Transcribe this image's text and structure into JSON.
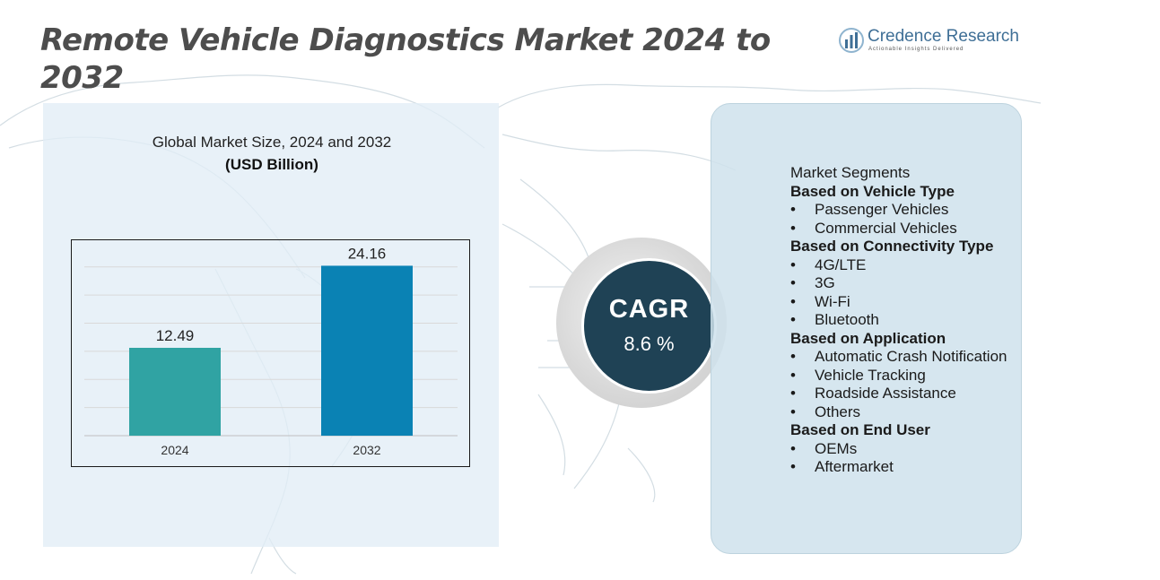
{
  "title": "Remote Vehicle Diagnostics Market 2024 to 2032",
  "logo": {
    "name": "Credence Research",
    "tagline": "Actionable Insights Delivered"
  },
  "chart_panel": {
    "subtitle": "Global Market Size, 2024 and 2032",
    "unit": "(USD Billion)"
  },
  "chart_data": {
    "type": "bar",
    "categories": [
      "2024",
      "2032"
    ],
    "values": [
      12.49,
      24.16
    ],
    "data_labels": [
      "12.49",
      "24.16"
    ],
    "ylim": [
      0,
      26
    ],
    "grid": true,
    "colors": [
      "#30a3a3",
      "#0a82b4"
    ]
  },
  "cagr": {
    "label": "CAGR",
    "value": "8.6 %"
  },
  "segments": {
    "heading": "Market Segments",
    "groups": [
      {
        "title": "Based on Vehicle Type",
        "items": [
          "Passenger Vehicles",
          "Commercial Vehicles"
        ]
      },
      {
        "title": "Based on Connectivity Type",
        "items": [
          "4G/LTE",
          "3G",
          "Wi-Fi",
          "Bluetooth"
        ]
      },
      {
        "title": "Based on Application",
        "items": [
          "Automatic Crash Notification",
          "Vehicle Tracking",
          "Roadside Assistance",
          "Others"
        ]
      },
      {
        "title": "Based on End User",
        "items": [
          "OEMs",
          "Aftermarket"
        ]
      }
    ]
  },
  "colors": {
    "title": "#4d4d4d",
    "cagr_circle": "#1f4255",
    "chart_panel": "#e2edf6",
    "segments_panel": "#cfe2ec",
    "logo": "#3f6f96"
  }
}
